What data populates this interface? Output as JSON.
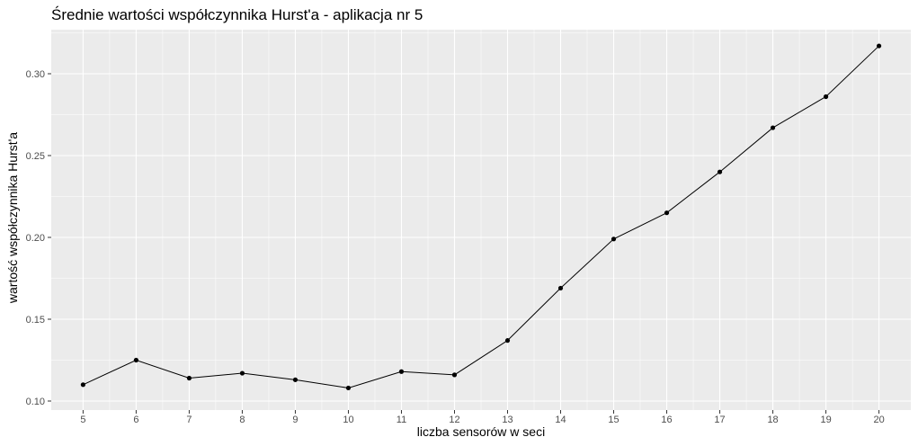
{
  "chart_data": {
    "type": "line",
    "title": "Średnie wartości współczynnika Hurst'a - aplikacja nr 5",
    "xlabel": "liczba sensorów w seci",
    "ylabel": "wartość współczynnika Hurst'a",
    "x": [
      5,
      6,
      7,
      8,
      9,
      10,
      11,
      12,
      13,
      14,
      15,
      16,
      17,
      18,
      19,
      20
    ],
    "y": [
      0.11,
      0.125,
      0.114,
      0.117,
      0.113,
      0.108,
      0.118,
      0.116,
      0.137,
      0.169,
      0.199,
      0.215,
      0.24,
      0.267,
      0.286,
      0.317
    ],
    "xticks": [
      "5",
      "6",
      "7",
      "8",
      "9",
      "10",
      "11",
      "12",
      "13",
      "14",
      "15",
      "16",
      "17",
      "18",
      "19",
      "20"
    ],
    "yticks": [
      "0.10",
      "0.15",
      "0.20",
      "0.25",
      "0.30"
    ],
    "xlim": [
      4.4,
      20.6
    ],
    "ylim": [
      0.1,
      0.3
    ],
    "grid": true,
    "colors": {
      "panel": "#ebebeb",
      "grid": "#ffffff",
      "line": "#000000",
      "point": "#000000"
    }
  }
}
